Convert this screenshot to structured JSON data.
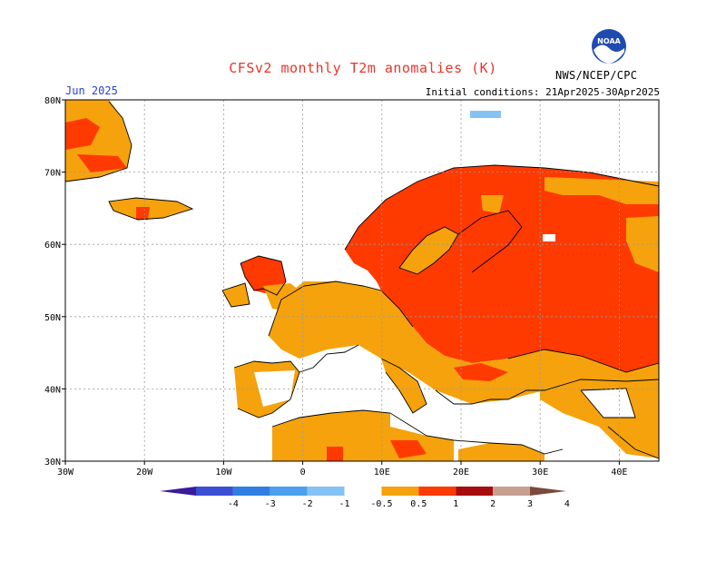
{
  "header": {
    "title": "CFSv2 monthly T2m anomalies (K)",
    "month": "Jun 2025",
    "initial_conditions": "Initial conditions: 21Apr2025-30Apr2025",
    "agency": "NWS/NCEP/CPC",
    "logo_text": "NOAA",
    "logo_icon": "noaa-logo-icon"
  },
  "map": {
    "x_ticks": [
      "30W",
      "20W",
      "10W",
      "0",
      "10E",
      "20E",
      "30E",
      "40E"
    ],
    "y_ticks": [
      "30N",
      "40N",
      "50N",
      "60N",
      "70N",
      "80N"
    ],
    "lon_range": [
      -30,
      45
    ],
    "lat_range": [
      30,
      80
    ]
  },
  "legend": {
    "labels": [
      "-4",
      "-3",
      "-2",
      "-1",
      "-0.5",
      "0.5",
      "1",
      "2",
      "3",
      "4"
    ],
    "colors": [
      "#3a1b9b",
      "#3b4fd4",
      "#2f7fe0",
      "#4aa0ec",
      "#84c2f4",
      "#ffffff",
      "#f5a20c",
      "#ff3a00",
      "#a80d0d",
      "#c8a092",
      "#7b4a3a"
    ]
  }
}
